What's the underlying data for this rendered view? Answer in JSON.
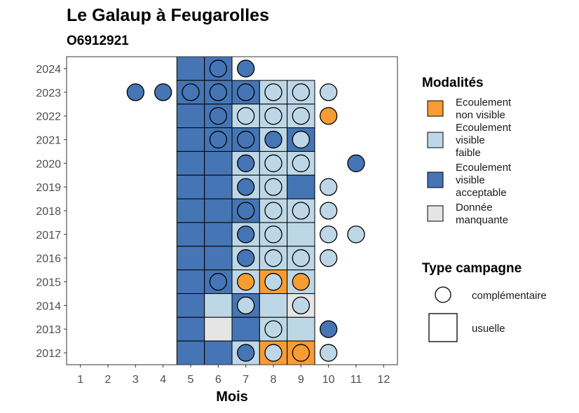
{
  "chart_data": {
    "type": "heatmap",
    "title": "Le Galaup à Feugarolles",
    "subtitle": "O6912921",
    "xlabel": "Mois",
    "ylabel": "",
    "x_ticks": [
      "1",
      "2",
      "3",
      "4",
      "5",
      "6",
      "7",
      "8",
      "9",
      "10",
      "11",
      "12"
    ],
    "y_ticks": [
      "2012",
      "2013",
      "2014",
      "2015",
      "2016",
      "2017",
      "2018",
      "2019",
      "2020",
      "2021",
      "2022",
      "2023",
      "2024"
    ],
    "xlim": [
      0.5,
      12.5
    ],
    "ylim": [
      2011.5,
      2024.5
    ],
    "grid": false,
    "legend_position": "right",
    "colors": {
      "non_visible": "#F89C33",
      "visible_faible": "#BDD7E7",
      "visible_acceptable": "#4575B4",
      "manquante": "#E5E5E5"
    },
    "legend_modalites": {
      "title": "Modalités",
      "items": [
        {
          "key": "non_visible",
          "lines": [
            "Ecoulement",
            "non visible"
          ]
        },
        {
          "key": "visible_faible",
          "lines": [
            "Ecoulement",
            "visible",
            "faible"
          ]
        },
        {
          "key": "visible_acceptable",
          "lines": [
            "Ecoulement",
            "visible",
            "acceptable"
          ]
        },
        {
          "key": "manquante",
          "lines": [
            "Donnée",
            "manquante"
          ]
        }
      ]
    },
    "legend_campagne": {
      "title": "Type campagne",
      "items": [
        {
          "shape": "circle",
          "label": "complémentaire"
        },
        {
          "shape": "square",
          "label": "usuelle"
        }
      ]
    },
    "tiles": [
      {
        "year": 2024,
        "month": 5,
        "value": "visible_acceptable"
      },
      {
        "year": 2024,
        "month": 6,
        "value": "visible_acceptable"
      },
      {
        "year": 2023,
        "month": 5,
        "value": "visible_acceptable"
      },
      {
        "year": 2023,
        "month": 6,
        "value": "visible_acceptable"
      },
      {
        "year": 2023,
        "month": 7,
        "value": "visible_acceptable"
      },
      {
        "year": 2023,
        "month": 8,
        "value": "visible_faible"
      },
      {
        "year": 2023,
        "month": 9,
        "value": "visible_faible"
      },
      {
        "year": 2022,
        "month": 5,
        "value": "visible_acceptable"
      },
      {
        "year": 2022,
        "month": 6,
        "value": "visible_acceptable"
      },
      {
        "year": 2022,
        "month": 7,
        "value": "visible_faible"
      },
      {
        "year": 2022,
        "month": 8,
        "value": "visible_faible"
      },
      {
        "year": 2022,
        "month": 9,
        "value": "visible_faible"
      },
      {
        "year": 2021,
        "month": 5,
        "value": "visible_acceptable"
      },
      {
        "year": 2021,
        "month": 6,
        "value": "visible_acceptable"
      },
      {
        "year": 2021,
        "month": 7,
        "value": "visible_acceptable"
      },
      {
        "year": 2021,
        "month": 8,
        "value": "visible_faible"
      },
      {
        "year": 2021,
        "month": 9,
        "value": "visible_acceptable"
      },
      {
        "year": 2020,
        "month": 5,
        "value": "visible_acceptable"
      },
      {
        "year": 2020,
        "month": 6,
        "value": "visible_acceptable"
      },
      {
        "year": 2020,
        "month": 7,
        "value": "visible_faible"
      },
      {
        "year": 2020,
        "month": 8,
        "value": "visible_faible"
      },
      {
        "year": 2020,
        "month": 9,
        "value": "visible_faible"
      },
      {
        "year": 2019,
        "month": 5,
        "value": "visible_acceptable"
      },
      {
        "year": 2019,
        "month": 6,
        "value": "visible_acceptable"
      },
      {
        "year": 2019,
        "month": 7,
        "value": "visible_faible"
      },
      {
        "year": 2019,
        "month": 8,
        "value": "visible_faible"
      },
      {
        "year": 2019,
        "month": 9,
        "value": "visible_acceptable"
      },
      {
        "year": 2018,
        "month": 5,
        "value": "visible_acceptable"
      },
      {
        "year": 2018,
        "month": 6,
        "value": "visible_acceptable"
      },
      {
        "year": 2018,
        "month": 7,
        "value": "visible_acceptable"
      },
      {
        "year": 2018,
        "month": 8,
        "value": "visible_faible"
      },
      {
        "year": 2018,
        "month": 9,
        "value": "visible_faible"
      },
      {
        "year": 2017,
        "month": 5,
        "value": "visible_acceptable"
      },
      {
        "year": 2017,
        "month": 6,
        "value": "visible_acceptable"
      },
      {
        "year": 2017,
        "month": 7,
        "value": "visible_faible"
      },
      {
        "year": 2017,
        "month": 8,
        "value": "visible_faible"
      },
      {
        "year": 2017,
        "month": 9,
        "value": "visible_faible"
      },
      {
        "year": 2016,
        "month": 5,
        "value": "visible_acceptable"
      },
      {
        "year": 2016,
        "month": 6,
        "value": "visible_acceptable"
      },
      {
        "year": 2016,
        "month": 7,
        "value": "visible_faible"
      },
      {
        "year": 2016,
        "month": 8,
        "value": "visible_faible"
      },
      {
        "year": 2016,
        "month": 9,
        "value": "visible_faible"
      },
      {
        "year": 2015,
        "month": 5,
        "value": "visible_acceptable"
      },
      {
        "year": 2015,
        "month": 6,
        "value": "visible_acceptable"
      },
      {
        "year": 2015,
        "month": 7,
        "value": "visible_faible"
      },
      {
        "year": 2015,
        "month": 8,
        "value": "non_visible"
      },
      {
        "year": 2015,
        "month": 9,
        "value": "visible_faible"
      },
      {
        "year": 2014,
        "month": 5,
        "value": "visible_acceptable"
      },
      {
        "year": 2014,
        "month": 6,
        "value": "visible_faible"
      },
      {
        "year": 2014,
        "month": 7,
        "value": "visible_acceptable"
      },
      {
        "year": 2014,
        "month": 8,
        "value": "visible_faible"
      },
      {
        "year": 2014,
        "month": 9,
        "value": "manquante"
      },
      {
        "year": 2013,
        "month": 5,
        "value": "visible_acceptable"
      },
      {
        "year": 2013,
        "month": 6,
        "value": "manquante"
      },
      {
        "year": 2013,
        "month": 7,
        "value": "visible_acceptable"
      },
      {
        "year": 2013,
        "month": 8,
        "value": "visible_faible"
      },
      {
        "year": 2013,
        "month": 9,
        "value": "visible_faible"
      },
      {
        "year": 2012,
        "month": 5,
        "value": "visible_acceptable"
      },
      {
        "year": 2012,
        "month": 6,
        "value": "visible_acceptable"
      },
      {
        "year": 2012,
        "month": 7,
        "value": "visible_faible"
      },
      {
        "year": 2012,
        "month": 8,
        "value": "non_visible"
      },
      {
        "year": 2012,
        "month": 9,
        "value": "non_visible"
      }
    ],
    "points": [
      {
        "year": 2024,
        "month": 6,
        "value": "visible_acceptable"
      },
      {
        "year": 2024,
        "month": 7,
        "value": "visible_acceptable"
      },
      {
        "year": 2023,
        "month": 3,
        "value": "visible_acceptable"
      },
      {
        "year": 2023,
        "month": 4,
        "value": "visible_acceptable"
      },
      {
        "year": 2023,
        "month": 5,
        "value": "visible_acceptable"
      },
      {
        "year": 2023,
        "month": 6,
        "value": "visible_acceptable"
      },
      {
        "year": 2023,
        "month": 7,
        "value": "visible_acceptable"
      },
      {
        "year": 2023,
        "month": 8,
        "value": "visible_faible"
      },
      {
        "year": 2023,
        "month": 9,
        "value": "visible_faible"
      },
      {
        "year": 2023,
        "month": 10,
        "value": "visible_faible"
      },
      {
        "year": 2022,
        "month": 6,
        "value": "visible_acceptable"
      },
      {
        "year": 2022,
        "month": 7,
        "value": "visible_faible"
      },
      {
        "year": 2022,
        "month": 8,
        "value": "visible_faible"
      },
      {
        "year": 2022,
        "month": 9,
        "value": "visible_faible"
      },
      {
        "year": 2022,
        "month": 10,
        "value": "non_visible"
      },
      {
        "year": 2021,
        "month": 6,
        "value": "visible_acceptable"
      },
      {
        "year": 2021,
        "month": 7,
        "value": "visible_acceptable"
      },
      {
        "year": 2021,
        "month": 8,
        "value": "visible_acceptable"
      },
      {
        "year": 2021,
        "month": 9,
        "value": "visible_faible"
      },
      {
        "year": 2020,
        "month": 7,
        "value": "visible_acceptable"
      },
      {
        "year": 2020,
        "month": 8,
        "value": "visible_faible"
      },
      {
        "year": 2020,
        "month": 9,
        "value": "visible_faible"
      },
      {
        "year": 2020,
        "month": 11,
        "value": "visible_acceptable"
      },
      {
        "year": 2019,
        "month": 7,
        "value": "visible_acceptable"
      },
      {
        "year": 2019,
        "month": 8,
        "value": "visible_faible"
      },
      {
        "year": 2019,
        "month": 10,
        "value": "visible_faible"
      },
      {
        "year": 2018,
        "month": 7,
        "value": "visible_acceptable"
      },
      {
        "year": 2018,
        "month": 8,
        "value": "visible_faible"
      },
      {
        "year": 2018,
        "month": 9,
        "value": "visible_faible"
      },
      {
        "year": 2018,
        "month": 10,
        "value": "visible_faible"
      },
      {
        "year": 2017,
        "month": 7,
        "value": "visible_acceptable"
      },
      {
        "year": 2017,
        "month": 8,
        "value": "visible_faible"
      },
      {
        "year": 2017,
        "month": 10,
        "value": "visible_faible"
      },
      {
        "year": 2017,
        "month": 11,
        "value": "visible_faible"
      },
      {
        "year": 2016,
        "month": 7,
        "value": "visible_acceptable"
      },
      {
        "year": 2016,
        "month": 8,
        "value": "visible_faible"
      },
      {
        "year": 2016,
        "month": 9,
        "value": "visible_faible"
      },
      {
        "year": 2016,
        "month": 10,
        "value": "visible_faible"
      },
      {
        "year": 2015,
        "month": 6,
        "value": "visible_acceptable"
      },
      {
        "year": 2015,
        "month": 7,
        "value": "non_visible"
      },
      {
        "year": 2015,
        "month": 8,
        "value": "visible_faible"
      },
      {
        "year": 2015,
        "month": 9,
        "value": "non_visible"
      },
      {
        "year": 2014,
        "month": 7,
        "value": "visible_faible"
      },
      {
        "year": 2014,
        "month": 9,
        "value": "visible_faible"
      },
      {
        "year": 2013,
        "month": 8,
        "value": "visible_faible"
      },
      {
        "year": 2013,
        "month": 10,
        "value": "visible_acceptable"
      },
      {
        "year": 2012,
        "month": 7,
        "value": "visible_acceptable"
      },
      {
        "year": 2012,
        "month": 8,
        "value": "visible_faible"
      },
      {
        "year": 2012,
        "month": 9,
        "value": "non_visible"
      },
      {
        "year": 2012,
        "month": 10,
        "value": "visible_faible"
      }
    ]
  }
}
